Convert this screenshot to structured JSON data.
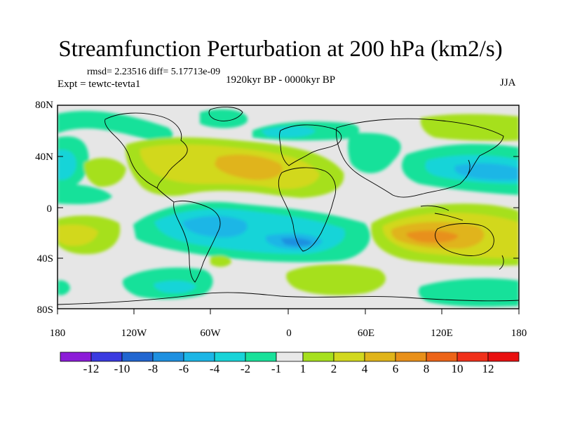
{
  "title": "Streamfunction Perturbation at 200 hPa (km2/s)",
  "stats": "rmsd= 2.23516 diff= 5.17713e-09",
  "experiment": "Expt = tewtc-tevta1",
  "period": "1920kyr BP - 0000kyr BP",
  "season": "JJA",
  "lat_ticks": [
    "80N",
    "40N",
    "0",
    "40S",
    "80S"
  ],
  "lon_ticks": [
    "180",
    "120W",
    "60W",
    "0",
    "60E",
    "120E",
    "180"
  ],
  "colorbar": {
    "labels": [
      "-12",
      "-10",
      "-8",
      "-6",
      "-4",
      "-2",
      "-1",
      "1",
      "2",
      "4",
      "6",
      "8",
      "10",
      "12"
    ],
    "colors": [
      "#8c1cd8",
      "#3a3ae0",
      "#2166d0",
      "#1e90e0",
      "#1cb6e6",
      "#18d4d8",
      "#19e19a",
      "#e8e8e8",
      "#a6e01e",
      "#d2d81e",
      "#e0b41a",
      "#e8901a",
      "#ec6418",
      "#f0301a",
      "#e81010"
    ]
  },
  "field_colors": {
    "neutral": "#e6e6e6",
    "pos1": "#a6e01e",
    "pos2": "#d2d81e",
    "pos3": "#e0b41a",
    "pos4": "#e8901a",
    "neg1": "#19e19a",
    "neg2": "#18d4d8",
    "neg3": "#1cb6e6",
    "neg4": "#1e90e0"
  }
}
